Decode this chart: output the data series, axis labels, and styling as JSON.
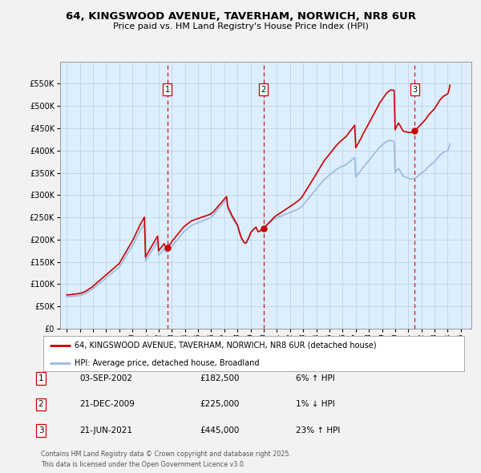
{
  "title": "64, KINGSWOOD AVENUE, TAVERHAM, NORWICH, NR8 6UR",
  "subtitle": "Price paid vs. HM Land Registry's House Price Index (HPI)",
  "legend_line1": "64, KINGSWOOD AVENUE, TAVERHAM, NORWICH, NR8 6UR (detached house)",
  "legend_line2": "HPI: Average price, detached house, Broadland",
  "footer_line1": "Contains HM Land Registry data © Crown copyright and database right 2025.",
  "footer_line2": "This data is licensed under the Open Government Licence v3.0.",
  "transactions": [
    {
      "num": 1,
      "date": "03-SEP-2002",
      "price": "£182,500",
      "pct": "6%",
      "dir": "↑",
      "year": 2002.67
    },
    {
      "num": 2,
      "date": "21-DEC-2009",
      "price": "£225,000",
      "pct": "1%",
      "dir": "↓",
      "year": 2009.97
    },
    {
      "num": 3,
      "date": "21-JUN-2021",
      "price": "£445,000",
      "pct": "23%",
      "dir": "↑",
      "year": 2021.47
    }
  ],
  "transaction_prices": [
    182500,
    225000,
    445000
  ],
  "ylim": [
    0,
    600000
  ],
  "yticks": [
    0,
    50000,
    100000,
    150000,
    200000,
    250000,
    300000,
    350000,
    400000,
    450000,
    500000,
    550000
  ],
  "xlim": [
    1994.5,
    2025.8
  ],
  "xticks": [
    1995,
    1996,
    1997,
    1998,
    1999,
    2000,
    2001,
    2002,
    2003,
    2004,
    2005,
    2006,
    2007,
    2008,
    2009,
    2010,
    2011,
    2012,
    2013,
    2014,
    2015,
    2016,
    2017,
    2018,
    2019,
    2020,
    2021,
    2022,
    2023,
    2024,
    2025
  ],
  "hpi_color": "#99bbdd",
  "price_color": "#cc0000",
  "dashed_color": "#cc0000",
  "background_color": "#ddeeff",
  "hpi_data_x": [
    1995.0,
    1995.08,
    1995.17,
    1995.25,
    1995.33,
    1995.42,
    1995.5,
    1995.58,
    1995.67,
    1995.75,
    1995.83,
    1995.92,
    1996.0,
    1996.08,
    1996.17,
    1996.25,
    1996.33,
    1996.42,
    1996.5,
    1996.58,
    1996.67,
    1996.75,
    1996.83,
    1996.92,
    1997.0,
    1997.08,
    1997.17,
    1997.25,
    1997.33,
    1997.42,
    1997.5,
    1997.58,
    1997.67,
    1997.75,
    1997.83,
    1997.92,
    1998.0,
    1998.08,
    1998.17,
    1998.25,
    1998.33,
    1998.42,
    1998.5,
    1998.58,
    1998.67,
    1998.75,
    1998.83,
    1998.92,
    1999.0,
    1999.08,
    1999.17,
    1999.25,
    1999.33,
    1999.42,
    1999.5,
    1999.58,
    1999.67,
    1999.75,
    1999.83,
    1999.92,
    2000.0,
    2000.08,
    2000.17,
    2000.25,
    2000.33,
    2000.42,
    2000.5,
    2000.58,
    2000.67,
    2000.75,
    2000.83,
    2000.92,
    2001.0,
    2001.08,
    2001.17,
    2001.25,
    2001.33,
    2001.42,
    2001.5,
    2001.58,
    2001.67,
    2001.75,
    2001.83,
    2001.92,
    2002.0,
    2002.08,
    2002.17,
    2002.25,
    2002.33,
    2002.42,
    2002.5,
    2002.58,
    2002.67,
    2002.75,
    2002.83,
    2002.92,
    2003.0,
    2003.08,
    2003.17,
    2003.25,
    2003.33,
    2003.42,
    2003.5,
    2003.58,
    2003.67,
    2003.75,
    2003.83,
    2003.92,
    2004.0,
    2004.08,
    2004.17,
    2004.25,
    2004.33,
    2004.42,
    2004.5,
    2004.58,
    2004.67,
    2004.75,
    2004.83,
    2004.92,
    2005.0,
    2005.08,
    2005.17,
    2005.25,
    2005.33,
    2005.42,
    2005.5,
    2005.58,
    2005.67,
    2005.75,
    2005.83,
    2005.92,
    2006.0,
    2006.08,
    2006.17,
    2006.25,
    2006.33,
    2006.42,
    2006.5,
    2006.58,
    2006.67,
    2006.75,
    2006.83,
    2006.92,
    2007.0,
    2007.08,
    2007.17,
    2007.25,
    2007.33,
    2007.42,
    2007.5,
    2007.58,
    2007.67,
    2007.75,
    2007.83,
    2007.92,
    2008.0,
    2008.08,
    2008.17,
    2008.25,
    2008.33,
    2008.42,
    2008.5,
    2008.58,
    2008.67,
    2008.75,
    2008.83,
    2008.92,
    2009.0,
    2009.08,
    2009.17,
    2009.25,
    2009.33,
    2009.42,
    2009.5,
    2009.58,
    2009.67,
    2009.75,
    2009.83,
    2009.92,
    2010.0,
    2010.08,
    2010.17,
    2010.25,
    2010.33,
    2010.42,
    2010.5,
    2010.58,
    2010.67,
    2010.75,
    2010.83,
    2010.92,
    2011.0,
    2011.08,
    2011.17,
    2011.25,
    2011.33,
    2011.42,
    2011.5,
    2011.58,
    2011.67,
    2011.75,
    2011.83,
    2011.92,
    2012.0,
    2012.08,
    2012.17,
    2012.25,
    2012.33,
    2012.42,
    2012.5,
    2012.58,
    2012.67,
    2012.75,
    2012.83,
    2012.92,
    2013.0,
    2013.08,
    2013.17,
    2013.25,
    2013.33,
    2013.42,
    2013.5,
    2013.58,
    2013.67,
    2013.75,
    2013.83,
    2013.92,
    2014.0,
    2014.08,
    2014.17,
    2014.25,
    2014.33,
    2014.42,
    2014.5,
    2014.58,
    2014.67,
    2014.75,
    2014.83,
    2014.92,
    2015.0,
    2015.08,
    2015.17,
    2015.25,
    2015.33,
    2015.42,
    2015.5,
    2015.58,
    2015.67,
    2015.75,
    2015.83,
    2015.92,
    2016.0,
    2016.08,
    2016.17,
    2016.25,
    2016.33,
    2016.42,
    2016.5,
    2016.58,
    2016.67,
    2016.75,
    2016.83,
    2016.92,
    2017.0,
    2017.08,
    2017.17,
    2017.25,
    2017.33,
    2017.42,
    2017.5,
    2017.58,
    2017.67,
    2017.75,
    2017.83,
    2017.92,
    2018.0,
    2018.08,
    2018.17,
    2018.25,
    2018.33,
    2018.42,
    2018.5,
    2018.58,
    2018.67,
    2018.75,
    2018.83,
    2018.92,
    2019.0,
    2019.08,
    2019.17,
    2019.25,
    2019.33,
    2019.42,
    2019.5,
    2019.58,
    2019.67,
    2019.75,
    2019.83,
    2019.92,
    2020.0,
    2020.08,
    2020.17,
    2020.25,
    2020.33,
    2020.42,
    2020.5,
    2020.58,
    2020.67,
    2020.75,
    2020.83,
    2020.92,
    2021.0,
    2021.08,
    2021.17,
    2021.25,
    2021.33,
    2021.42,
    2021.5,
    2021.58,
    2021.67,
    2021.75,
    2021.83,
    2021.92,
    2022.0,
    2022.08,
    2022.17,
    2022.25,
    2022.33,
    2022.42,
    2022.5,
    2022.58,
    2022.67,
    2022.75,
    2022.83,
    2022.92,
    2023.0,
    2023.08,
    2023.17,
    2023.25,
    2023.33,
    2023.42,
    2023.5,
    2023.58,
    2023.67,
    2023.75,
    2023.83,
    2023.92,
    2024.0,
    2024.08,
    2024.17,
    2024.25,
    2024.33,
    2024.42,
    2024.5,
    2024.58,
    2024.67,
    2024.75,
    2024.83,
    2024.92,
    2025.0,
    2025.17,
    2025.5
  ],
  "hpi_data_y": [
    72000,
    71500,
    71800,
    72000,
    72200,
    72500,
    73000,
    73200,
    73500,
    73800,
    74000,
    74500,
    75000,
    75500,
    76000,
    77000,
    78000,
    79000,
    80500,
    82000,
    83500,
    85000,
    86500,
    88000,
    90000,
    92000,
    94000,
    96000,
    98000,
    100000,
    102000,
    104000,
    106000,
    108000,
    110000,
    112000,
    114000,
    116000,
    118000,
    120000,
    122000,
    124000,
    126000,
    128000,
    130000,
    132000,
    134000,
    136000,
    138000,
    142000,
    146000,
    150000,
    154000,
    158000,
    162000,
    166000,
    170000,
    174000,
    178000,
    182000,
    186000,
    190000,
    195000,
    200000,
    205000,
    210000,
    215000,
    220000,
    224000,
    228000,
    232000,
    236000,
    152000,
    156000,
    160000,
    164000,
    168000,
    172000,
    176000,
    180000,
    184000,
    188000,
    192000,
    196000,
    165000,
    168000,
    171000,
    174000,
    177000,
    180000,
    175000,
    172000,
    172000,
    175000,
    178000,
    181000,
    185000,
    188000,
    191000,
    194000,
    197000,
    200000,
    203000,
    206000,
    209000,
    212000,
    215000,
    218000,
    220000,
    222000,
    224000,
    226000,
    228000,
    230000,
    232000,
    233000,
    234000,
    235000,
    236000,
    237000,
    238000,
    239000,
    240000,
    241000,
    242000,
    243000,
    244000,
    245000,
    246000,
    247000,
    248000,
    249000,
    251000,
    253000,
    255000,
    258000,
    261000,
    264000,
    267000,
    270000,
    273000,
    276000,
    279000,
    282000,
    285000,
    288000,
    291000,
    271000,
    265000,
    260000,
    255000,
    250000,
    246000,
    242000,
    238000,
    234000,
    230000,
    222000,
    213000,
    206000,
    200000,
    196000,
    193000,
    191000,
    192000,
    197000,
    202000,
    208000,
    215000,
    218000,
    221000,
    224000,
    226000,
    228000,
    222000,
    218000,
    219000,
    221000,
    223000,
    225000,
    227000,
    229000,
    231000,
    233000,
    235000,
    237000,
    239000,
    241000,
    243000,
    245000,
    247000,
    248000,
    249000,
    250000,
    251000,
    252000,
    253000,
    254000,
    255000,
    256000,
    257000,
    258000,
    259000,
    260000,
    261000,
    262000,
    263000,
    264000,
    265000,
    266000,
    267000,
    268000,
    269500,
    271000,
    273000,
    275000,
    278000,
    281000,
    284000,
    287000,
    290000,
    293000,
    296000,
    299000,
    302000,
    305000,
    308000,
    311000,
    314000,
    317000,
    320000,
    323000,
    326000,
    329000,
    332000,
    335000,
    337000,
    339000,
    341000,
    343000,
    345000,
    347000,
    349000,
    351000,
    353000,
    355000,
    357000,
    358500,
    360000,
    361500,
    363000,
    364000,
    365000,
    366000,
    367000,
    368000,
    370000,
    372000,
    374000,
    376000,
    378000,
    380000,
    382000,
    384000,
    341000,
    344000,
    347000,
    350000,
    353000,
    356000,
    360000,
    363000,
    366000,
    369000,
    372000,
    375000,
    378000,
    381000,
    384000,
    387000,
    390000,
    393000,
    396000,
    399000,
    402000,
    405000,
    408000,
    410000,
    412000,
    414000,
    416000,
    418000,
    420000,
    421000,
    422000,
    422500,
    423000,
    422000,
    421000,
    420000,
    350000,
    354000,
    357000,
    360000,
    356000,
    352000,
    348000,
    344000,
    342000,
    341000,
    340000,
    339000,
    338000,
    337000,
    336500,
    336000,
    336500,
    337000,
    338000,
    339500,
    341000,
    343000,
    345000,
    347000,
    349000,
    351000,
    353000,
    355000,
    357000,
    360000,
    363000,
    365000,
    367000,
    369000,
    371000,
    373000,
    375000,
    378000,
    381000,
    384000,
    387000,
    390000,
    392000,
    394000,
    396000,
    397000,
    398000,
    399000,
    400000,
    405000,
    415000
  ]
}
